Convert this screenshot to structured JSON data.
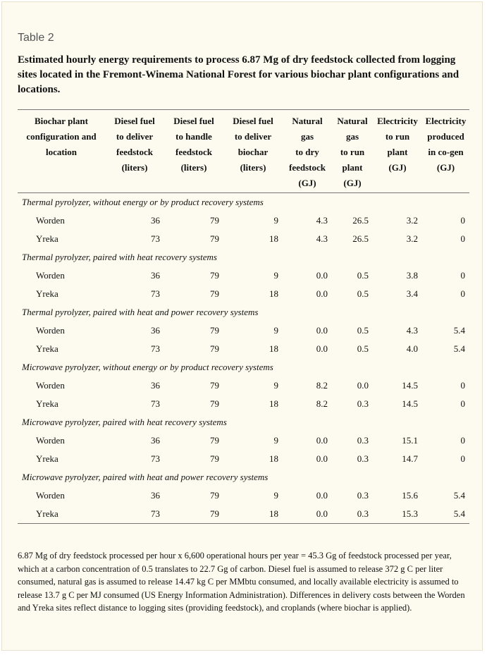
{
  "label": "Table 2",
  "caption": "Estimated hourly energy requirements to process 6.87 Mg of dry feedstock collected from logging sites located in the Fremont-Winema National Forest for various biochar plant configurations and locations.",
  "columns": [
    [
      "Biochar plant",
      "configuration and",
      "location"
    ],
    [
      "Diesel fuel",
      "to deliver",
      "feedstock",
      "(liters)"
    ],
    [
      "Diesel fuel",
      "to handle",
      "feedstock",
      "(liters)"
    ],
    [
      "Diesel fuel",
      "to deliver",
      "biochar",
      "(liters)"
    ],
    [
      "Natural",
      "gas",
      "to dry",
      "feedstock",
      "(GJ)"
    ],
    [
      "Natural",
      "gas",
      "to run",
      "plant",
      "(GJ)"
    ],
    [
      "Electricity",
      "to run",
      "plant",
      "(GJ)"
    ],
    [
      "Electricity",
      "produced",
      "in co-gen",
      "(GJ)"
    ]
  ],
  "sections": [
    {
      "title": "Thermal pyrolyzer, without energy or by product recovery systems",
      "rows": [
        {
          "site": "Worden",
          "values": [
            "36",
            "79",
            "9",
            "4.3",
            "26.5",
            "3.2",
            "0"
          ]
        },
        {
          "site": "Yreka",
          "values": [
            "73",
            "79",
            "18",
            "4.3",
            "26.5",
            "3.2",
            "0"
          ]
        }
      ]
    },
    {
      "title": "Thermal pyrolyzer, paired with heat recovery systems",
      "rows": [
        {
          "site": "Worden",
          "values": [
            "36",
            "79",
            "9",
            "0.0",
            "0.5",
            "3.8",
            "0"
          ]
        },
        {
          "site": "Yreka",
          "values": [
            "73",
            "79",
            "18",
            "0.0",
            "0.5",
            "3.4",
            "0"
          ]
        }
      ]
    },
    {
      "title": "Thermal pyrolyzer, paired with heat and power recovery systems",
      "rows": [
        {
          "site": "Worden",
          "values": [
            "36",
            "79",
            "9",
            "0.0",
            "0.5",
            "4.3",
            "5.4"
          ]
        },
        {
          "site": "Yreka",
          "values": [
            "73",
            "79",
            "18",
            "0.0",
            "0.5",
            "4.0",
            "5.4"
          ]
        }
      ]
    },
    {
      "title": "Microwave pyrolyzer, without energy or by product recovery systems",
      "rows": [
        {
          "site": "Worden",
          "values": [
            "36",
            "79",
            "9",
            "8.2",
            "0.0",
            "14.5",
            "0"
          ]
        },
        {
          "site": "Yreka",
          "values": [
            "73",
            "79",
            "18",
            "8.2",
            "0.3",
            "14.5",
            "0"
          ]
        }
      ]
    },
    {
      "title": "Microwave pyrolyzer, paired with heat recovery systems",
      "rows": [
        {
          "site": "Worden",
          "values": [
            "36",
            "79",
            "9",
            "0.0",
            "0.3",
            "15.1",
            "0"
          ]
        },
        {
          "site": "Yreka",
          "values": [
            "73",
            "79",
            "18",
            "0.0",
            "0.3",
            "14.7",
            "0"
          ]
        }
      ]
    },
    {
      "title": "Microwave pyrolyzer, paired with heat and power recovery systems",
      "rows": [
        {
          "site": "Worden",
          "values": [
            "36",
            "79",
            "9",
            "0.0",
            "0.3",
            "15.6",
            "5.4"
          ]
        },
        {
          "site": "Yreka",
          "values": [
            "73",
            "79",
            "18",
            "0.0",
            "0.3",
            "15.3",
            "5.4"
          ]
        }
      ]
    }
  ],
  "footnote": "6.87 Mg of dry feedstock processed per hour x 6,600 operational hours per year = 45.3 Gg of feedstock processed per year, which at a carbon concentration of 0.5 translates to 22.7 Gg of carbon. Diesel fuel is assumed to release 372 g C per liter consumed, natural gas is assumed to release 14.47 kg C per MMbtu consumed, and locally available electricity is assumed to release 13.7 g C per MJ consumed (US Energy Information Administration). Differences in delivery costs between the Worden and Yreka sites reflect distance to logging sites (providing feedstock), and croplands (where biochar is applied)."
}
